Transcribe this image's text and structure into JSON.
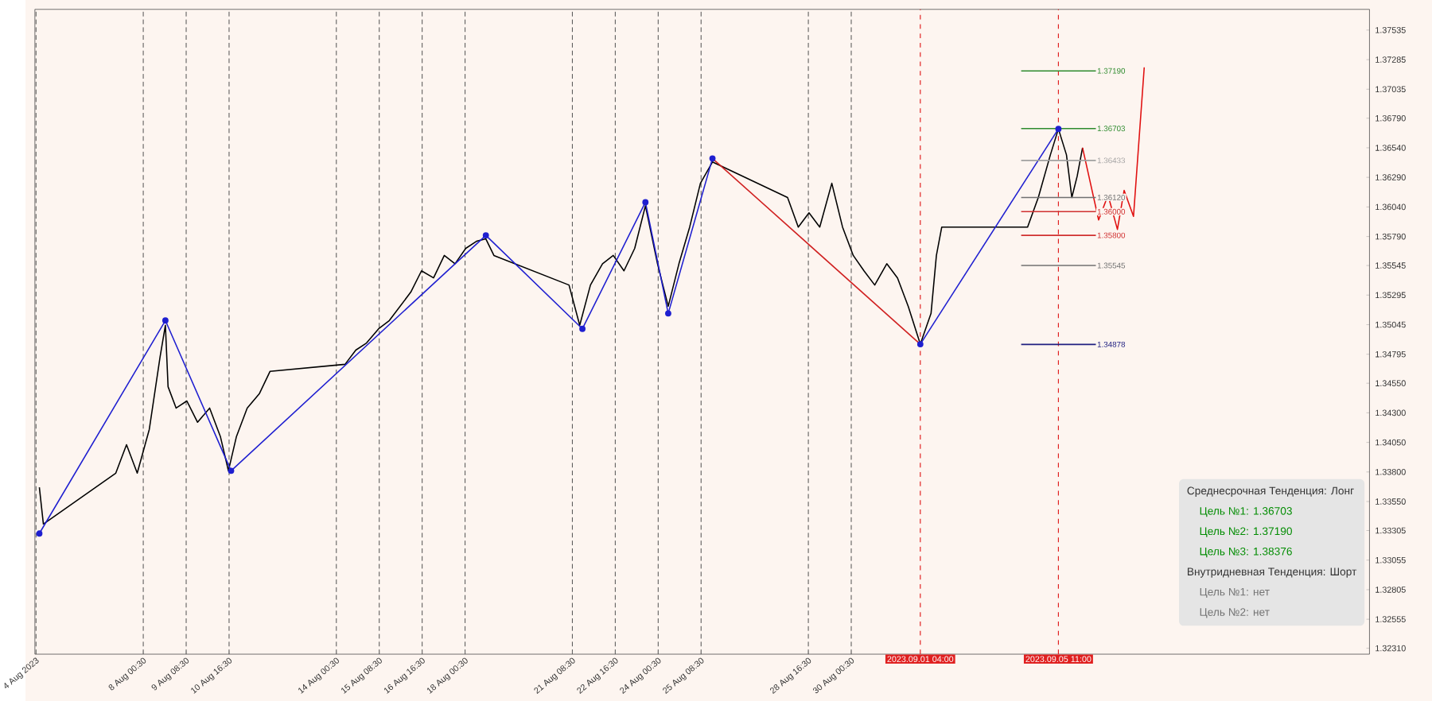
{
  "chart_data": {
    "type": "line",
    "x": [
      "2023-08-04T19:00",
      "2023-08-04T22:00",
      "2023-08-07T04:00",
      "2023-08-07T12:00",
      "2023-08-07T20:00",
      "2023-08-08T05:00",
      "2023-08-08T13:00",
      "2023-08-08T17:00",
      "2023-08-08T19:00",
      "2023-08-09T01:00",
      "2023-08-09T09:00",
      "2023-08-09T17:00",
      "2023-08-10T02:00",
      "2023-08-10T10:00",
      "2023-08-10T16:00",
      "2023-08-10T22:00",
      "2023-08-11T06:00",
      "2023-08-11T15:00",
      "2023-08-11T23:00",
      "2023-08-14T07:00",
      "2023-08-14T15:00",
      "2023-08-14T23:00",
      "2023-08-15T08:00",
      "2023-08-15T16:00",
      "2023-08-16T00:00",
      "2023-08-16T08:00",
      "2023-08-16T16:00",
      "2023-08-17T01:00",
      "2023-08-17T09:00",
      "2023-08-17T17:00",
      "2023-08-18T01:00",
      "2023-08-18T09:00",
      "2023-08-18T16:00",
      "2023-08-18T22:00",
      "2023-08-21T06:00",
      "2023-08-21T14:00",
      "2023-08-21T22:00",
      "2023-08-22T07:00",
      "2023-08-22T15:00",
      "2023-08-22T23:00",
      "2023-08-23T07:00",
      "2023-08-23T15:00",
      "2023-08-24T00:00",
      "2023-08-24T08:00",
      "2023-08-24T16:00",
      "2023-08-25T00:00",
      "2023-08-25T08:00",
      "2023-08-25T17:00",
      "2023-08-28T01:00",
      "2023-08-28T09:00",
      "2023-08-28T17:00",
      "2023-08-29T01:00",
      "2023-08-29T10:00",
      "2023-08-29T18:00",
      "2023-08-30T02:00",
      "2023-08-30T10:00",
      "2023-08-30T18:00",
      "2023-08-31T03:00",
      "2023-08-31T11:00",
      "2023-08-31T19:00",
      "2023-09-01T04:00",
      "2023-09-01T12:00",
      "2023-09-01T16:00",
      "2023-09-01T20:00",
      "2023-09-04T04:00",
      "2023-09-04T12:00",
      "2023-09-04T20:00",
      "2023-09-05T05:00",
      "2023-09-05T11:00",
      "2023-09-05T17:00",
      "2023-09-05T21:00",
      "2023-09-06T01:00",
      "2023-09-06T05:00"
    ],
    "series": [
      {
        "color": "#000000",
        "values": [
          1.3367,
          1.3336,
          1.3379,
          1.3403,
          1.3379,
          1.3416,
          1.3477,
          1.3504,
          1.3452,
          1.3434,
          1.344,
          1.3422,
          1.3434,
          1.341,
          1.3381,
          1.341,
          1.3434,
          1.3446,
          1.3465,
          1.3471,
          1.3483,
          1.3489,
          1.3501,
          1.3508,
          1.352,
          1.3532,
          1.355,
          1.3544,
          1.3563,
          1.3556,
          1.3569,
          1.3575,
          1.3577,
          1.3563,
          1.3538,
          1.3504,
          1.3538,
          1.3556,
          1.3563,
          1.355,
          1.3569,
          1.3605,
          1.3556,
          1.352,
          1.3556,
          1.3587,
          1.3624,
          1.3642,
          1.3612,
          1.3587,
          1.3599,
          1.3587,
          1.3624,
          1.3587,
          1.3563,
          1.355,
          1.3538,
          1.3556,
          1.3544,
          1.352,
          1.3488,
          1.3514,
          1.3563,
          1.3587,
          1.3587,
          1.3587,
          1.3612,
          1.3648,
          1.367,
          1.3648,
          1.3612,
          1.363,
          1.3654
        ]
      },
      {
        "color": "#1f1fd0",
        "marker": "circle",
        "x": [
          "2023-08-04T19:00",
          "2023-08-08T17:00",
          "2023-08-10T18:00",
          "2023-08-18T16:00",
          "2023-08-21T16:00",
          "2023-08-23T15:00",
          "2023-08-24T08:00",
          "2023-08-25T17:00"
        ],
        "values": [
          1.3328,
          1.3508,
          1.3381,
          1.358,
          1.3501,
          1.3608,
          1.3514,
          1.3645
        ]
      },
      {
        "color": "#d02020",
        "x": [
          "2023-08-25T17:00",
          "2023-09-01T04:00"
        ],
        "values": [
          1.3645,
          1.3488
        ]
      },
      {
        "color": "#1f1fd0",
        "marker": "circle",
        "x": [
          "2023-09-01T04:00",
          "2023-09-05T11:00"
        ],
        "values": [
          1.3488,
          1.367
        ]
      },
      {
        "color": "#e01010",
        "x": [
          "2023-09-06T05:00",
          "2023-09-06T17:00",
          "2023-09-07T00:00",
          "2023-09-07T07:00",
          "2023-09-07T12:00",
          "2023-09-07T19:00",
          "2023-09-08T03:00"
        ],
        "values": [
          1.3654,
          1.3593,
          1.3614,
          1.3585,
          1.3618,
          1.3596,
          1.3722
        ]
      }
    ],
    "xlim": [
      "2023-08-04T15:40",
      "2023-09-15T03:00"
    ],
    "ylim": [
      1.3226,
      1.3771
    ],
    "xticks": [
      {
        "value": "2023-08-04T16:30",
        "label": "4 Aug 2023"
      },
      {
        "value": "2023-08-08T00:30",
        "label": "8 Aug 00:30"
      },
      {
        "value": "2023-08-09T08:30",
        "label": "9 Aug 08:30"
      },
      {
        "value": "2023-08-10T16:30",
        "label": "10 Aug 16:30"
      },
      {
        "value": "2023-08-14T00:30",
        "label": "14 Aug 00:30"
      },
      {
        "value": "2023-08-15T08:30",
        "label": "15 Aug 08:30"
      },
      {
        "value": "2023-08-16T16:30",
        "label": "16 Aug 16:30"
      },
      {
        "value": "2023-08-18T00:30",
        "label": "18 Aug 00:30"
      },
      {
        "value": "2023-08-21T08:30",
        "label": "21 Aug 08:30"
      },
      {
        "value": "2023-08-22T16:30",
        "label": "22 Aug 16:30"
      },
      {
        "value": "2023-08-24T00:30",
        "label": "24 Aug 00:30"
      },
      {
        "value": "2023-08-25T08:30",
        "label": "25 Aug 08:30"
      },
      {
        "value": "2023-08-28T16:30",
        "label": "28 Aug 16:30"
      },
      {
        "value": "2023-08-30T00:30",
        "label": "30 Aug 00:30"
      }
    ],
    "yticks": [
      {
        "value": 1.37535,
        "label": "1.37535"
      },
      {
        "value": 1.37285,
        "label": "1.37285"
      },
      {
        "value": 1.37035,
        "label": "1.37035"
      },
      {
        "value": 1.3679,
        "label": "1.36790"
      },
      {
        "value": 1.3654,
        "label": "1.36540"
      },
      {
        "value": 1.3629,
        "label": "1.36290"
      },
      {
        "value": 1.3604,
        "label": "1.36040"
      },
      {
        "value": 1.3579,
        "label": "1.35790"
      },
      {
        "value": 1.35545,
        "label": "1.35545"
      },
      {
        "value": 1.35295,
        "label": "1.35295"
      },
      {
        "value": 1.35045,
        "label": "1.35045"
      },
      {
        "value": 1.34795,
        "label": "1.34795"
      },
      {
        "value": 1.3455,
        "label": "1.34550"
      },
      {
        "value": 1.343,
        "label": "1.34300"
      },
      {
        "value": 1.3405,
        "label": "1.34050"
      },
      {
        "value": 1.338,
        "label": "1.33800"
      },
      {
        "value": 1.3355,
        "label": "1.33550"
      },
      {
        "value": 1.33305,
        "label": "1.33305"
      },
      {
        "value": 1.33055,
        "label": "1.33055"
      },
      {
        "value": 1.32805,
        "label": "1.32805"
      },
      {
        "value": 1.32555,
        "label": "1.32555"
      },
      {
        "value": 1.3231,
        "label": "1.32310"
      }
    ],
    "grid": "x",
    "ref_lines": [
      {
        "axis": "x",
        "value": "2023-09-01T04:00",
        "label": "2023.09.01 04:00",
        "color": "#e02020",
        "line_style": "dashed"
      },
      {
        "axis": "x",
        "value": "2023-09-05T11:00",
        "label": "2023.09.05 11:00",
        "color": "#e02020",
        "line_style": "dashed"
      },
      {
        "axis": "y",
        "value": 1.3719,
        "label": "1.37190",
        "color": "#2e8b2e"
      },
      {
        "axis": "y",
        "value": 1.36703,
        "label": "1.36703",
        "color": "#2e8b2e"
      },
      {
        "axis": "y",
        "value": 1.36433,
        "label": "1.36433",
        "color": "#a0a0a0"
      },
      {
        "axis": "y",
        "value": 1.3612,
        "label": "1.36120",
        "color": "#707070"
      },
      {
        "axis": "y",
        "value": 1.36,
        "label": "1.36000",
        "color": "#d03030"
      },
      {
        "axis": "y",
        "value": 1.358,
        "label": "1.35800",
        "color": "#d03030"
      },
      {
        "axis": "y",
        "value": 1.35545,
        "label": "1.35545",
        "color": "#707070"
      },
      {
        "axis": "y",
        "value": 1.34878,
        "label": "1.34878",
        "color": "#202080"
      }
    ],
    "annotations": [
      "Среднесрочная Тенденция: Лонг",
      "Цель №1: 1.36703",
      "Цель №2: 1.37190",
      "Цель №3: 1.38376",
      "Внутридневная Тенденция: Шорт",
      "Цель №1: нет",
      "Цель №2: нет"
    ]
  }
}
